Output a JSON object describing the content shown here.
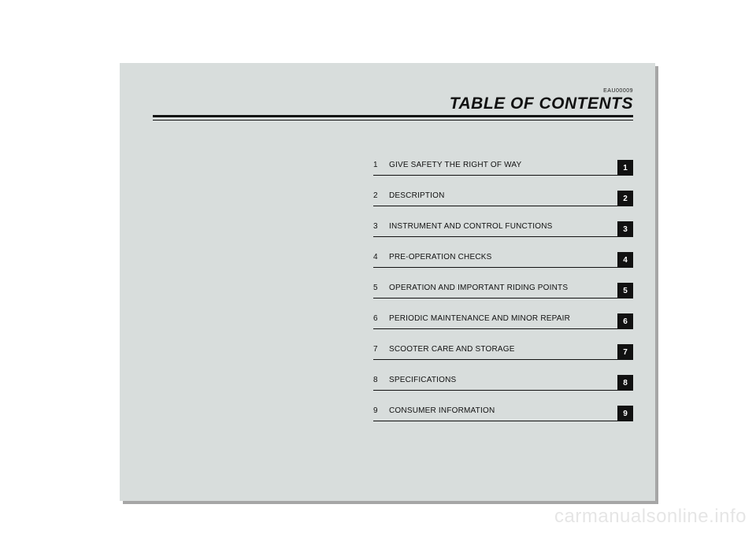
{
  "doc_code": "EAU00009",
  "title": "TABLE OF CONTENTS",
  "background_color": "#d8dddc",
  "page_bg": "#ffffff",
  "tab_bg": "#111111",
  "tab_fg": "#ffffff",
  "rule_color": "#111111",
  "title_fontsize": 21,
  "label_fontsize": 10,
  "tab_size": 20,
  "items": [
    {
      "n": "1",
      "label": "GIVE SAFETY THE RIGHT OF WAY",
      "tab": "1"
    },
    {
      "n": "2",
      "label": "DESCRIPTION",
      "tab": "2"
    },
    {
      "n": "3",
      "label": "INSTRUMENT AND CONTROL FUNCTIONS",
      "tab": "3"
    },
    {
      "n": "4",
      "label": "PRE-OPERATION CHECKS",
      "tab": "4"
    },
    {
      "n": "5",
      "label": "OPERATION AND IMPORTANT RIDING POINTS",
      "tab": "5"
    },
    {
      "n": "6",
      "label": "PERIODIC MAINTENANCE AND MINOR REPAIR",
      "tab": "6"
    },
    {
      "n": "7",
      "label": "SCOOTER CARE AND STORAGE",
      "tab": "7"
    },
    {
      "n": "8",
      "label": "SPECIFICATIONS",
      "tab": "8"
    },
    {
      "n": "9",
      "label": "CONSUMER INFORMATION",
      "tab": "9"
    }
  ],
  "watermark": "carmanualsonline.info"
}
